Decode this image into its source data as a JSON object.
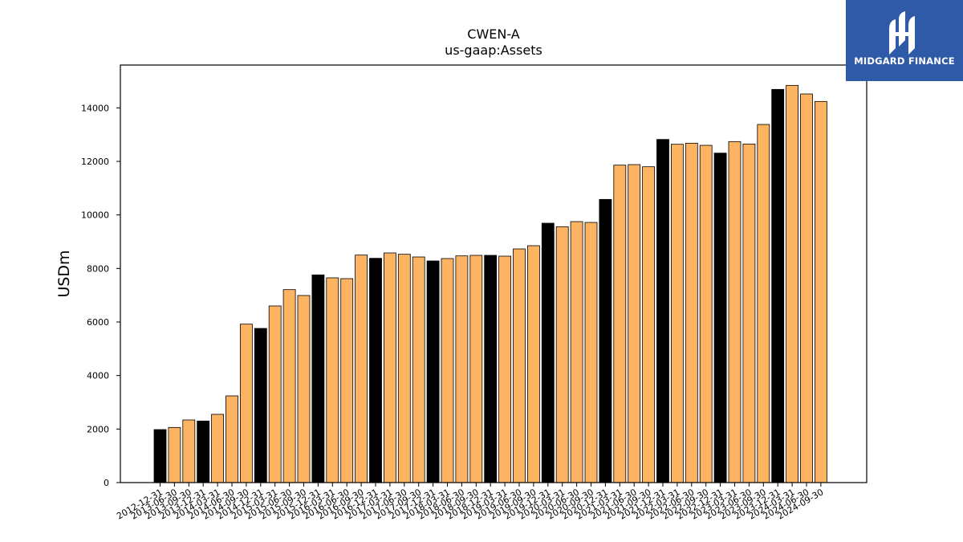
{
  "chart_data": {
    "type": "bar",
    "title": "CWEN-A",
    "subtitle": "us-gaap:Assets",
    "ylabel": "USDm",
    "xlabel": "",
    "ylim": [
      0,
      15600
    ],
    "yticks": [
      0,
      2000,
      4000,
      6000,
      8000,
      10000,
      12000,
      14000
    ],
    "grid": false,
    "colors": {
      "fiscal_year_end": "#000000",
      "interim": "#fdb462",
      "edge": "#000000"
    },
    "categories": [
      "2012-12-31",
      "2013-06-30",
      "2013-09-30",
      "2013-12-31",
      "2014-03-31",
      "2014-06-30",
      "2014-09-30",
      "2014-12-31",
      "2015-03-31",
      "2015-06-30",
      "2015-09-30",
      "2015-12-31",
      "2016-03-31",
      "2016-06-30",
      "2016-09-30",
      "2016-12-31",
      "2017-03-31",
      "2017-06-30",
      "2017-09-30",
      "2017-12-31",
      "2018-03-31",
      "2018-06-30",
      "2018-09-30",
      "2018-12-31",
      "2019-03-31",
      "2019-06-30",
      "2019-09-30",
      "2019-12-31",
      "2020-03-31",
      "2020-06-30",
      "2020-09-30",
      "2020-12-31",
      "2021-03-31",
      "2021-06-30",
      "2021-09-30",
      "2021-12-31",
      "2022-03-31",
      "2022-06-30",
      "2022-09-30",
      "2022-12-31",
      "2023-03-31",
      "2023-06-30",
      "2023-09-30",
      "2023-12-31",
      "2024-03-31",
      "2024-06-30",
      "2024-09-30"
    ],
    "values": [
      1980,
      2060,
      2340,
      2300,
      2550,
      3240,
      5920,
      5760,
      6600,
      7210,
      6990,
      7760,
      7650,
      7620,
      8500,
      8380,
      8580,
      8530,
      8430,
      8280,
      8370,
      8470,
      8490,
      8490,
      8460,
      8730,
      8850,
      9690,
      9560,
      9750,
      9720,
      10580,
      11860,
      11880,
      11800,
      12820,
      12640,
      12680,
      12600,
      12310,
      12740,
      12650,
      13380,
      14690,
      14840,
      14520,
      14240
    ],
    "fiscal_year_end": [
      true,
      false,
      false,
      true,
      false,
      false,
      false,
      true,
      false,
      false,
      false,
      true,
      false,
      false,
      false,
      true,
      false,
      false,
      false,
      true,
      false,
      false,
      false,
      true,
      false,
      false,
      false,
      true,
      false,
      false,
      false,
      true,
      false,
      false,
      false,
      true,
      false,
      false,
      false,
      true,
      false,
      false,
      false,
      true,
      false,
      false,
      false
    ]
  },
  "logo": {
    "text": "MIDGARD FINANCE",
    "background": "#2f5aa8"
  }
}
